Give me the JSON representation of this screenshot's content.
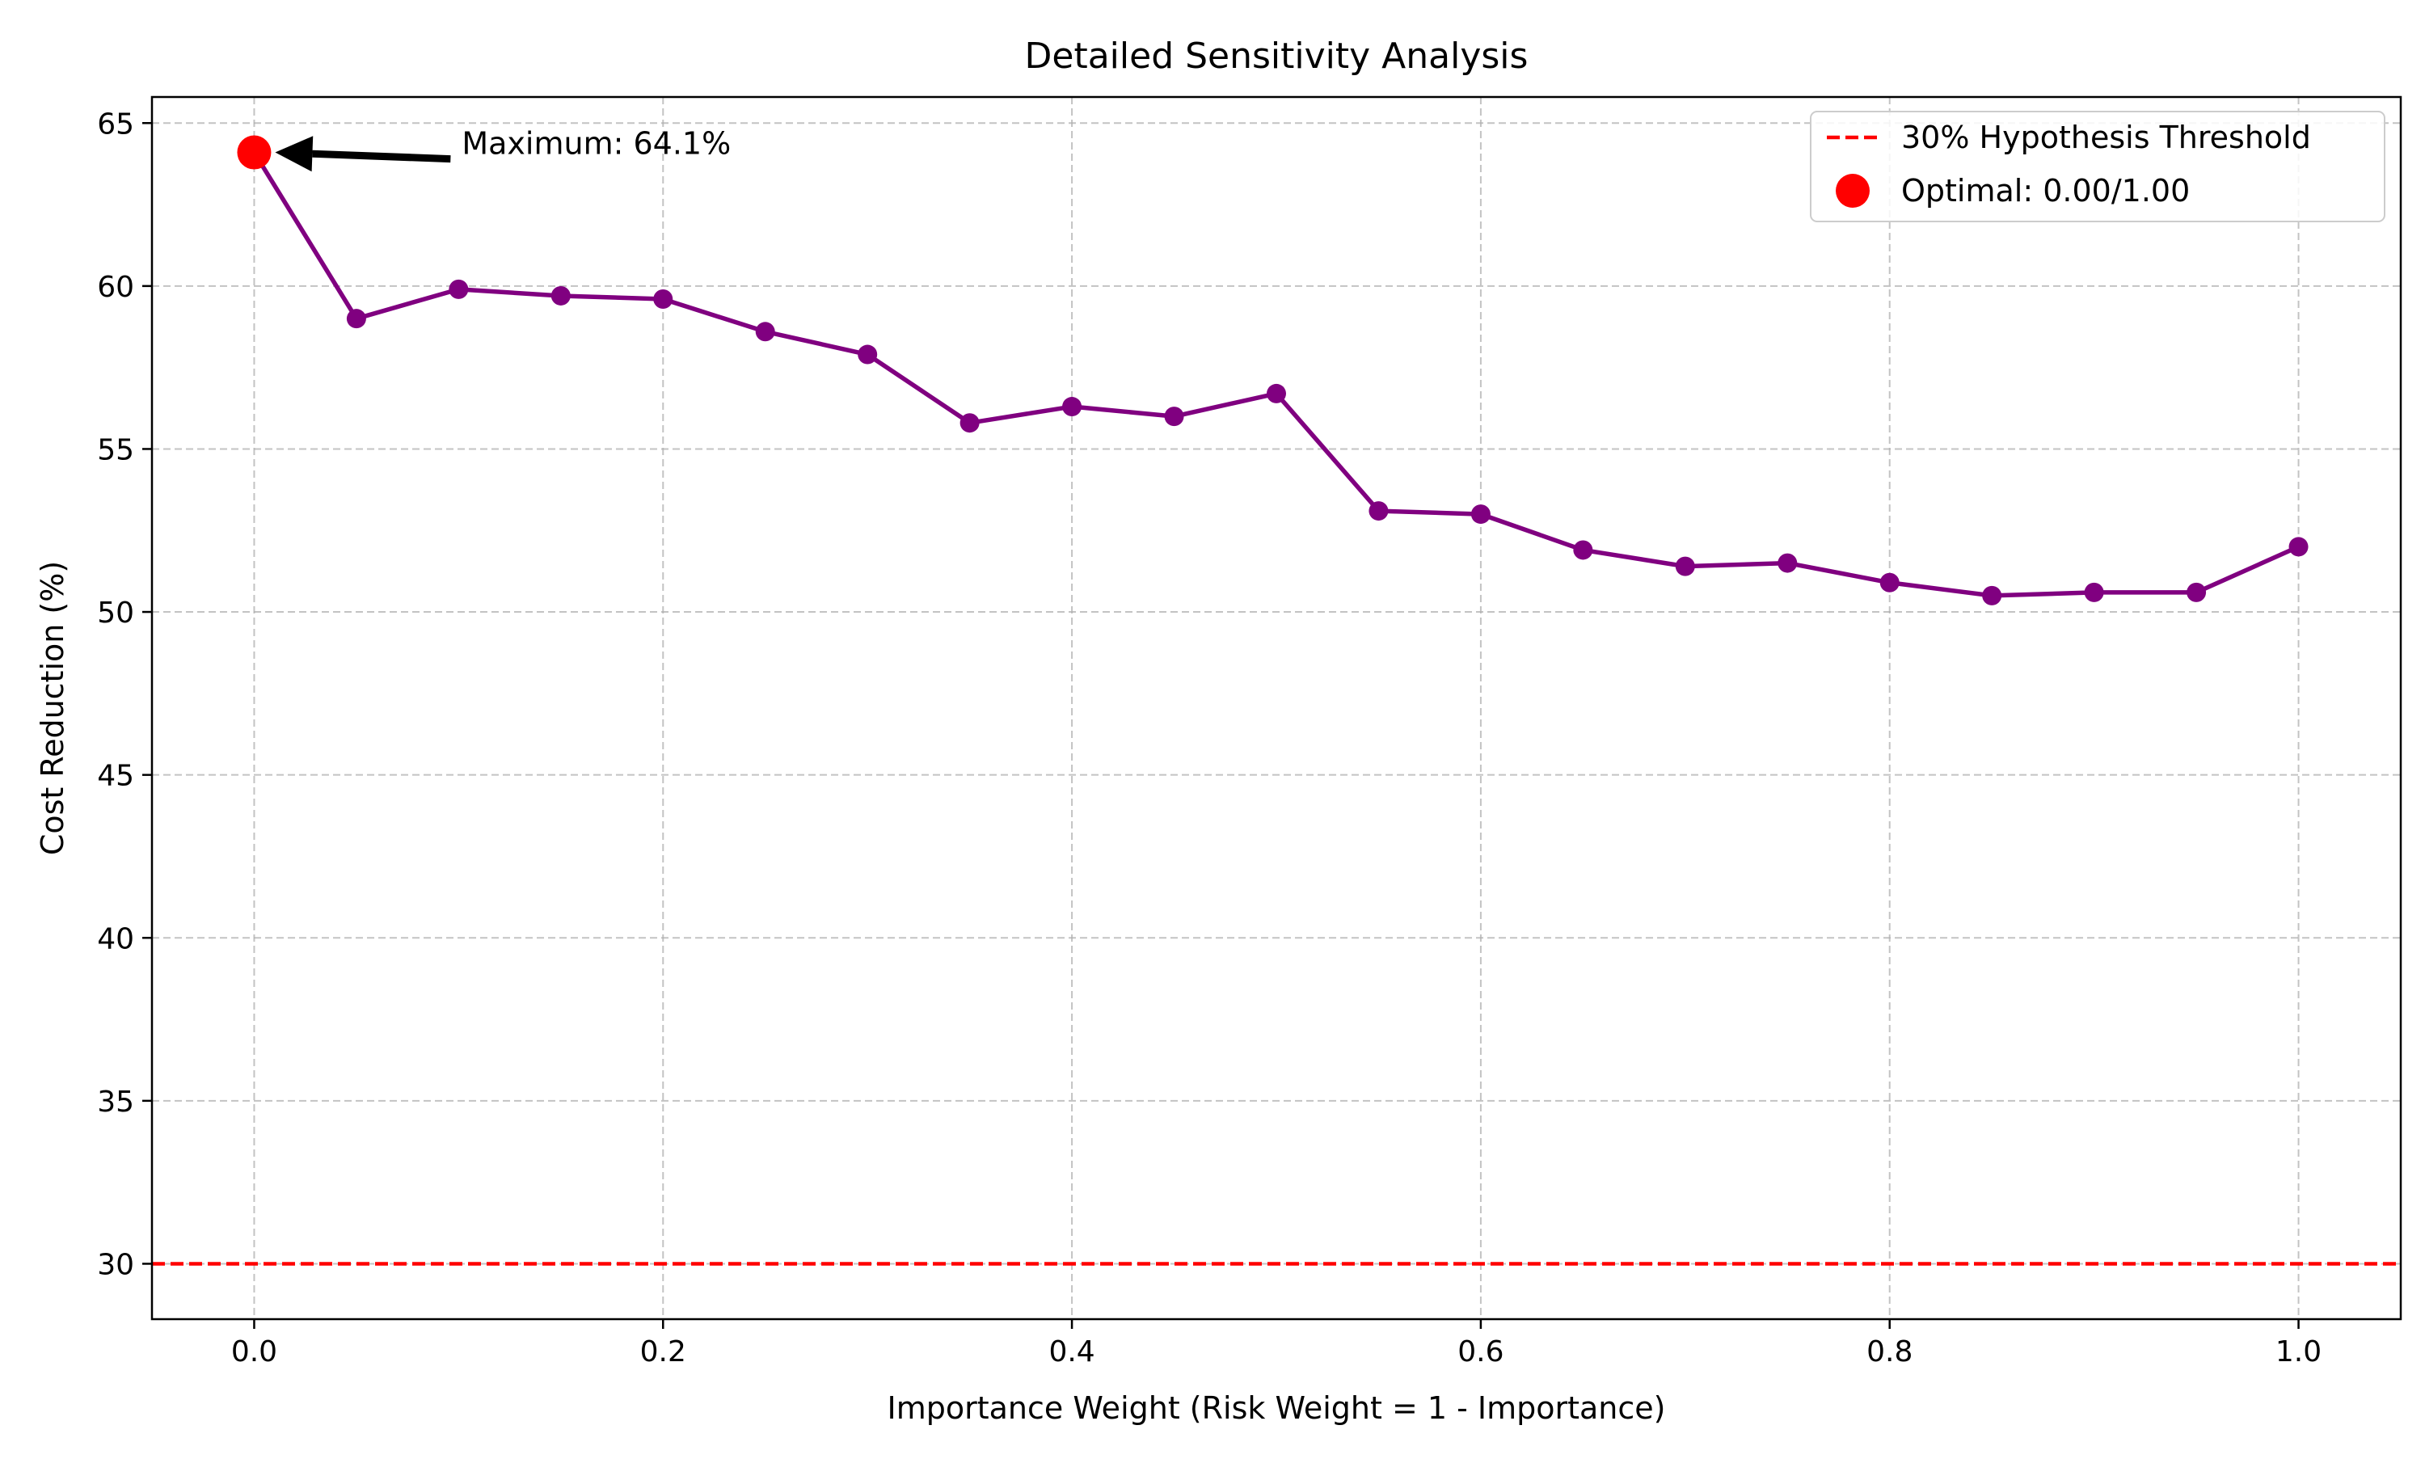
{
  "chart_data": {
    "type": "line",
    "title": "Detailed Sensitivity Analysis",
    "xlabel": "Importance Weight (Risk Weight = 1 - Importance)",
    "ylabel": "Cost Reduction (%)",
    "xlim": [
      -0.05,
      1.05
    ],
    "ylim": [
      28.3,
      65.8
    ],
    "xticks": [
      0.0,
      0.2,
      0.4,
      0.6,
      0.8,
      1.0
    ],
    "xtick_labels": [
      "0.0",
      "0.2",
      "0.4",
      "0.6",
      "0.8",
      "1.0"
    ],
    "yticks": [
      30,
      35,
      40,
      45,
      50,
      55,
      60,
      65
    ],
    "ytick_labels": [
      "30",
      "35",
      "40",
      "45",
      "50",
      "55",
      "60",
      "65"
    ],
    "grid": true,
    "legend_position": "top-right",
    "series": [
      {
        "x": [
          0.0,
          0.05,
          0.1,
          0.15,
          0.2,
          0.25,
          0.3,
          0.35,
          0.4,
          0.45,
          0.5,
          0.55,
          0.6,
          0.65,
          0.7,
          0.75,
          0.8,
          0.85,
          0.9,
          0.95,
          1.0
        ],
        "values": [
          64.1,
          59.0,
          59.9,
          59.7,
          59.6,
          58.6,
          57.9,
          55.8,
          56.3,
          56.0,
          56.7,
          53.1,
          53.0,
          51.9,
          51.4,
          51.5,
          50.9,
          50.5,
          50.6,
          50.6,
          52.0
        ],
        "color": "#800080"
      }
    ],
    "threshold": {
      "name": "30% Hypothesis Threshold",
      "value": 30,
      "color": "#ff0000"
    },
    "optimal_point": {
      "name": "Optimal: 0.00/1.00",
      "x": 0.0,
      "y": 64.1,
      "color": "#ff0000"
    },
    "annotation": {
      "text": "Maximum: 64.1%",
      "x_text": 0.1,
      "y_text": 63.9
    }
  }
}
